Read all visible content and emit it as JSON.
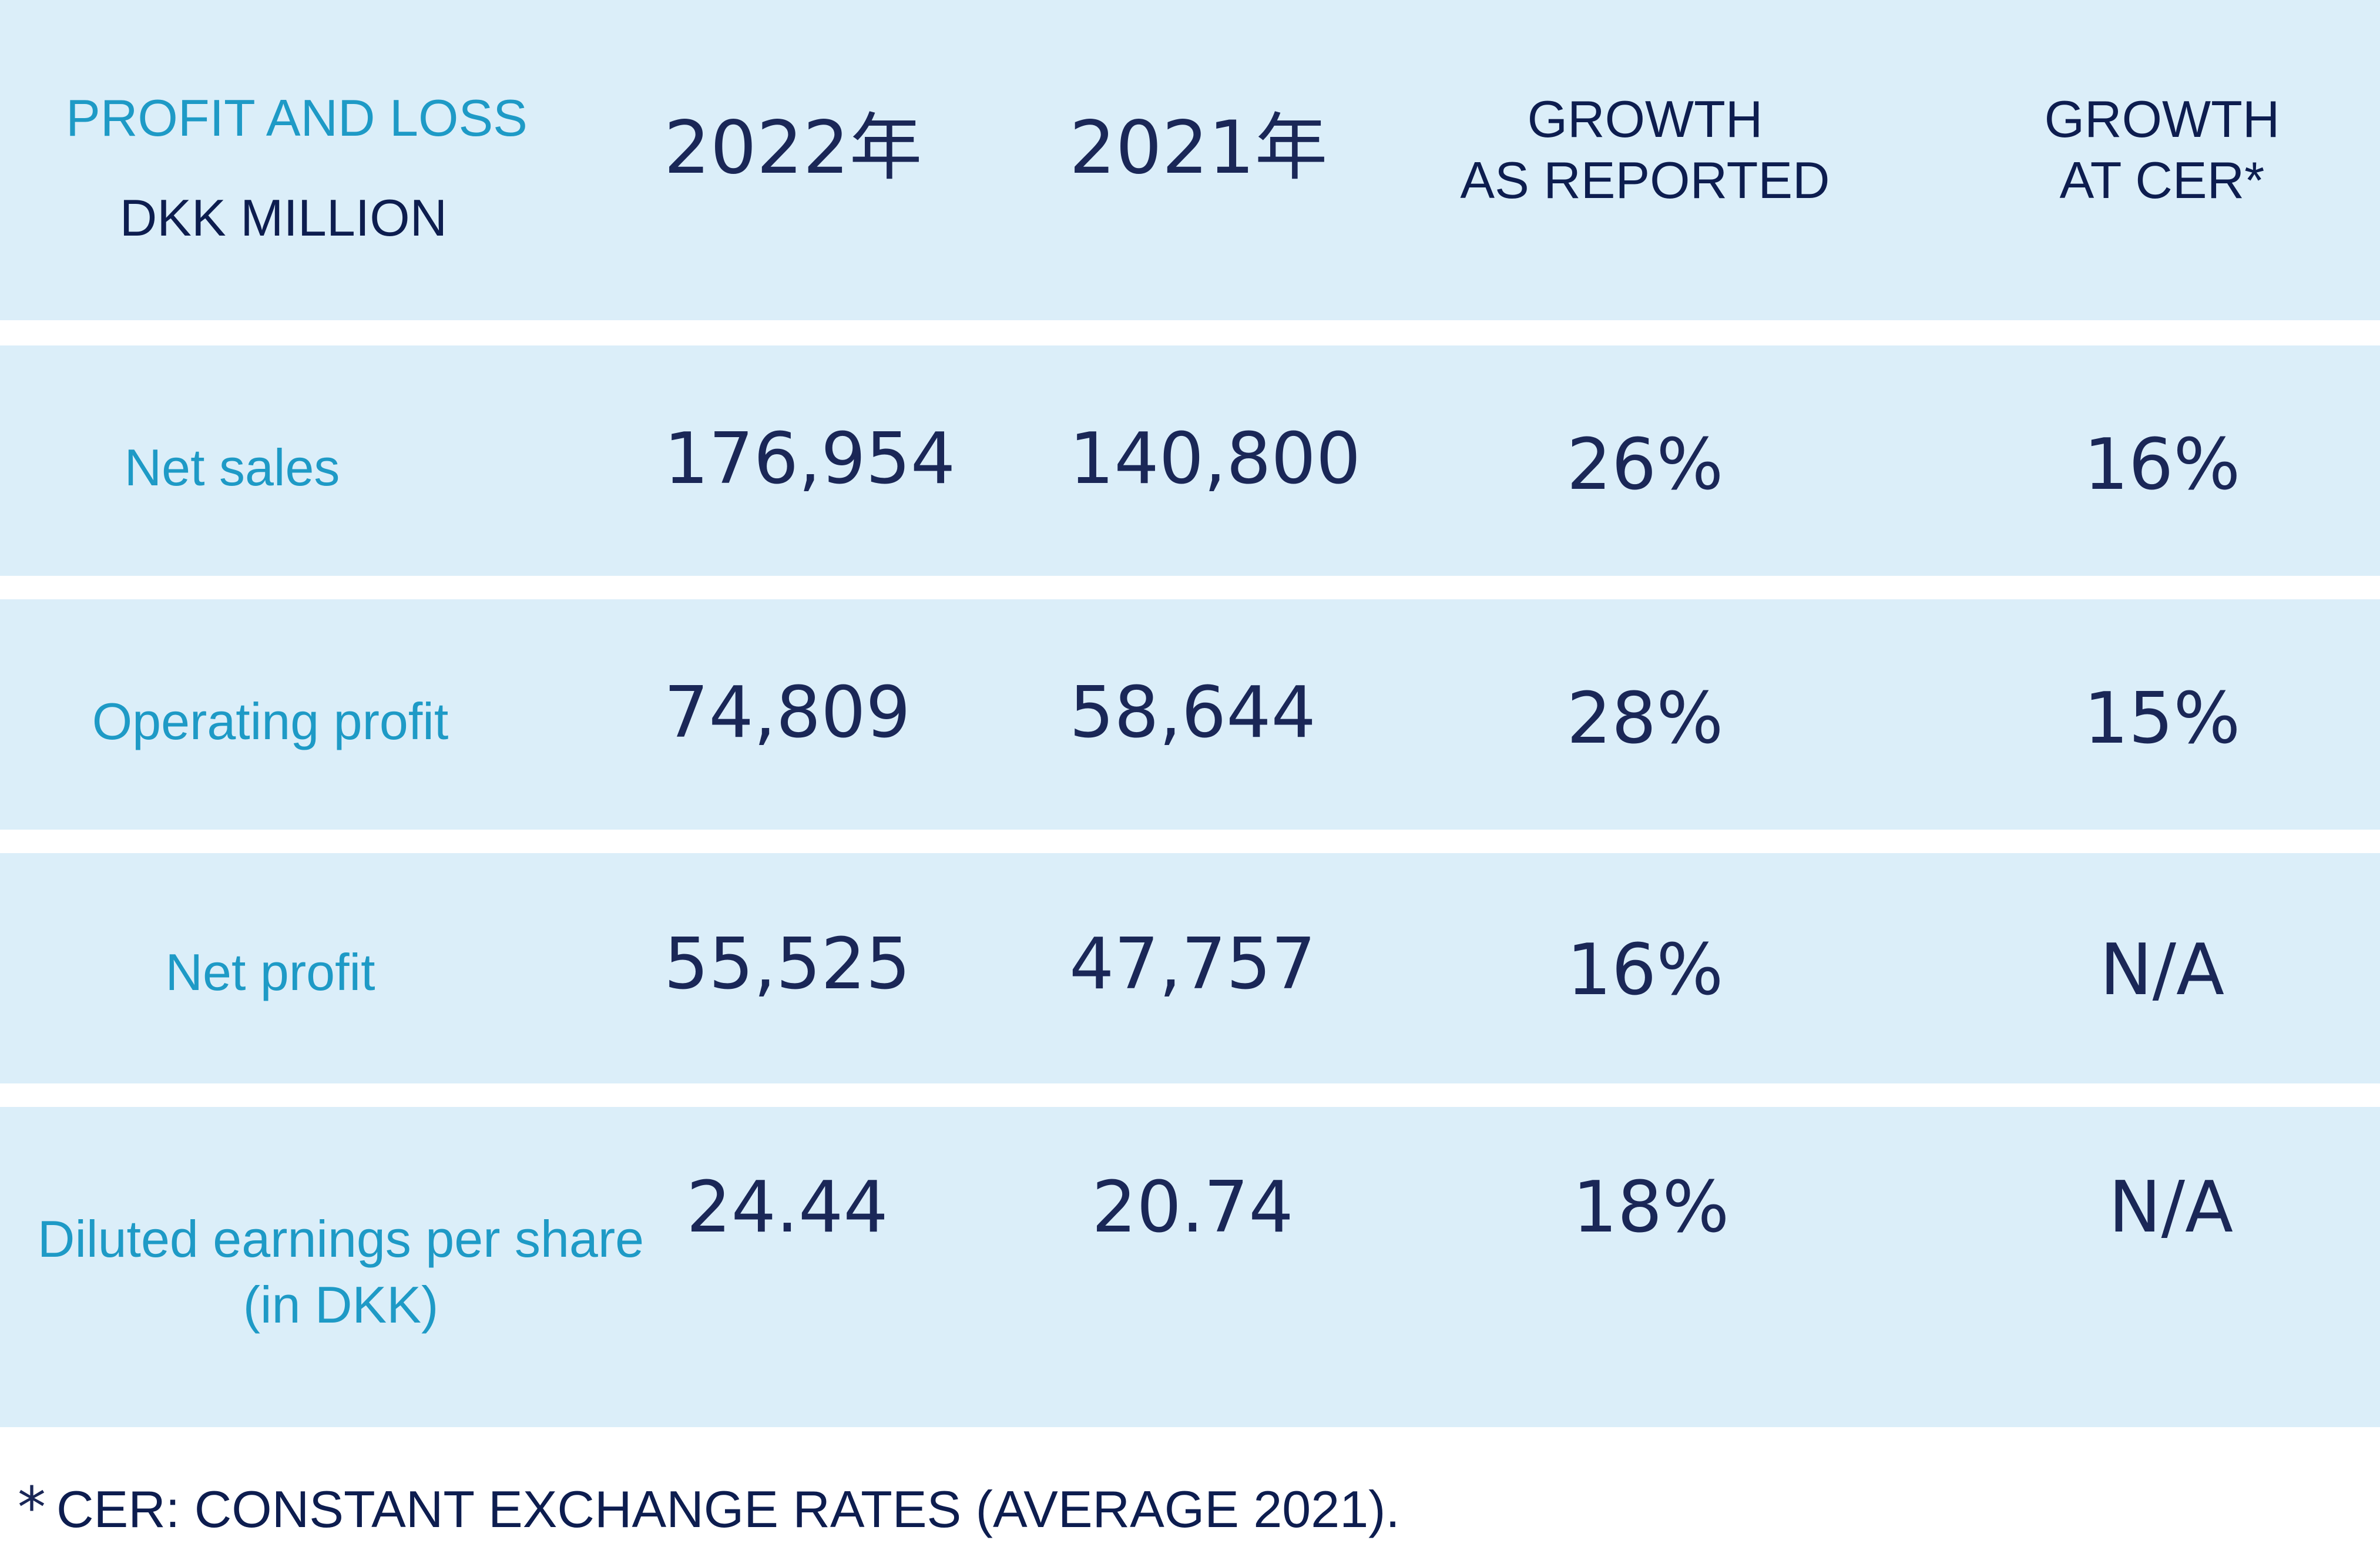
{
  "header": {
    "title": "PROFIT AND LOSS",
    "subtitle": "DKK MILLION",
    "col_2022": "2022年",
    "col_2021": "2021年",
    "col_reported_line1": "GROWTH",
    "col_reported_line2": "AS REPORTED",
    "col_cer_line1": "GROWTH",
    "col_cer_line2": "AT CER*"
  },
  "rows": [
    {
      "label": "Net sales",
      "v2022": "176,954",
      "v2021": "140,800",
      "reported": "26%",
      "cer": "16%"
    },
    {
      "label": "Operating profit",
      "v2022": "74,809",
      "v2021": "58,644",
      "reported": "28%",
      "cer": "15%"
    },
    {
      "label": "Net profit",
      "v2022": "55,525",
      "v2021": "47,757",
      "reported": "16%",
      "cer": "N/A"
    },
    {
      "label_line1": "Diluted earnings per share",
      "label_line2": "(in DKK)",
      "v2022": "24.44",
      "v2021": "20.74",
      "reported": "18%",
      "cer": "N/A"
    }
  ],
  "footnote": {
    "marker": "*",
    "text": "CER: CONSTANT EXCHANGE RATES (AVERAGE 2021)."
  },
  "colors": {
    "band": "#dbeef9",
    "teal": "#1e9ac6",
    "navy": "#1a2757"
  }
}
